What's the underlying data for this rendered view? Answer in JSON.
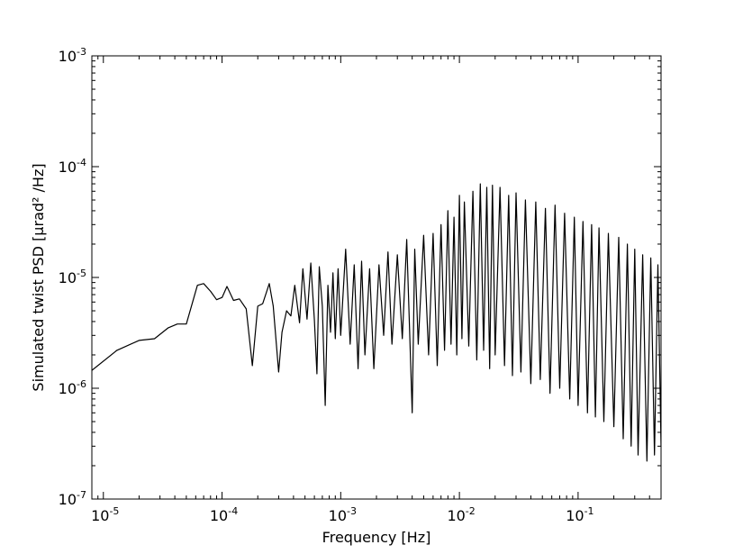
{
  "chart_data": {
    "type": "line",
    "title": "",
    "xlabel": "Frequency [Hz]",
    "ylabel": "Simulated twist PSD [μrad² /Hz]",
    "xscale": "log",
    "yscale": "log",
    "xlim": [
      8e-06,
      0.5
    ],
    "ylim": [
      1e-07,
      0.001
    ],
    "grid": false,
    "legend": "none",
    "line_color": "#000000",
    "x_ticks": [
      {
        "base": "10",
        "exp": "-5",
        "value": 1e-05
      },
      {
        "base": "10",
        "exp": "-4",
        "value": 0.0001
      },
      {
        "base": "10",
        "exp": "-3",
        "value": 0.001
      },
      {
        "base": "10",
        "exp": "-2",
        "value": 0.01
      },
      {
        "base": "10",
        "exp": "-1",
        "value": 0.1
      }
    ],
    "y_ticks": [
      {
        "base": "10",
        "exp": "-7",
        "value": 1e-07
      },
      {
        "base": "10",
        "exp": "-6",
        "value": 1e-06
      },
      {
        "base": "10",
        "exp": "-5",
        "value": 1e-05
      },
      {
        "base": "10",
        "exp": "-4",
        "value": 0.0001
      },
      {
        "base": "10",
        "exp": "-3",
        "value": 0.001
      }
    ],
    "series": [
      {
        "x": [
          8e-06,
          1.3e-05,
          2e-05,
          2.7e-05,
          3.5e-05,
          4.2e-05,
          5e-05,
          6.2e-05,
          7e-05,
          8e-05,
          9e-05,
          0.0001,
          0.00011,
          0.000125,
          0.00014,
          0.00016,
          0.00018,
          0.0002,
          0.00022,
          0.00025,
          0.00027,
          0.0003,
          0.00032,
          0.00035,
          0.00038,
          0.00041,
          0.00045,
          0.00048,
          0.00052,
          0.00056,
          0.0006,
          0.00063,
          0.00066,
          0.0007,
          0.00074,
          0.00078,
          0.00082,
          0.00086,
          0.0009,
          0.00095,
          0.001,
          0.0011,
          0.0012,
          0.0013,
          0.0014,
          0.0015,
          0.0016,
          0.00175,
          0.0019,
          0.0021,
          0.0023,
          0.0025,
          0.0027,
          0.003,
          0.0033,
          0.0036,
          0.004,
          0.0042,
          0.0045,
          0.005,
          0.0055,
          0.006,
          0.0065,
          0.007,
          0.0075,
          0.008,
          0.0085,
          0.009,
          0.0095,
          0.01,
          0.0105,
          0.011,
          0.012,
          0.013,
          0.014,
          0.015,
          0.016,
          0.017,
          0.018,
          0.019,
          0.02,
          0.022,
          0.024,
          0.026,
          0.028,
          0.03,
          0.033,
          0.036,
          0.04,
          0.044,
          0.048,
          0.053,
          0.058,
          0.064,
          0.07,
          0.077,
          0.085,
          0.093,
          0.1,
          0.11,
          0.12,
          0.13,
          0.14,
          0.15,
          0.165,
          0.18,
          0.2,
          0.22,
          0.24,
          0.26,
          0.28,
          0.3,
          0.32,
          0.35,
          0.38,
          0.41,
          0.44,
          0.47,
          0.5
        ],
        "y": [
          1.45e-06,
          2.2e-06,
          2.7e-06,
          2.8e-06,
          3.5e-06,
          3.8e-06,
          3.8e-06,
          8.5e-06,
          8.8e-06,
          7.5e-06,
          6.3e-06,
          6.6e-06,
          8.3e-06,
          6.2e-06,
          6.4e-06,
          5.2e-06,
          1.6e-06,
          5.5e-06,
          5.8e-06,
          8.8e-06,
          5.5e-06,
          1.4e-06,
          3.2e-06,
          5e-06,
          4.5e-06,
          8.5e-06,
          3.9e-06,
          1.2e-05,
          4.2e-06,
          1.35e-05,
          4.1e-06,
          1.35e-06,
          1.25e-05,
          5.5e-06,
          7e-07,
          8.5e-06,
          3.2e-06,
          1.1e-05,
          2.8e-06,
          1.2e-05,
          3e-06,
          1.8e-05,
          2.5e-06,
          1.3e-05,
          1.5e-06,
          1.4e-05,
          2e-06,
          1.2e-05,
          1.5e-06,
          1.3e-05,
          3e-06,
          1.7e-05,
          2.5e-06,
          1.6e-05,
          2.8e-06,
          2.2e-05,
          6e-07,
          1.8e-05,
          2.5e-06,
          2.4e-05,
          2e-06,
          2.5e-05,
          1.6e-06,
          3e-05,
          2.2e-06,
          4e-05,
          2.5e-06,
          3.5e-05,
          2e-06,
          5.5e-05,
          2.8e-06,
          4.8e-05,
          2.4e-06,
          6e-05,
          1.8e-06,
          7e-05,
          2.2e-06,
          6.5e-05,
          1.5e-06,
          6.8e-05,
          2e-06,
          6.5e-05,
          1.6e-06,
          5.5e-05,
          1.3e-06,
          5.8e-05,
          1.4e-06,
          5e-05,
          1.1e-06,
          4.8e-05,
          1.2e-06,
          4.2e-05,
          9e-07,
          4.5e-05,
          1e-06,
          3.8e-05,
          8e-07,
          3.5e-05,
          7e-07,
          3.2e-05,
          6e-07,
          3e-05,
          5.5e-07,
          2.8e-05,
          5e-07,
          2.5e-05,
          4.5e-07,
          2.3e-05,
          3.5e-07,
          2e-05,
          3e-07,
          1.8e-05,
          2.5e-07,
          1.6e-05,
          2.2e-07,
          1.5e-05,
          2.5e-07,
          1.3e-05,
          3e-07
        ]
      }
    ]
  }
}
